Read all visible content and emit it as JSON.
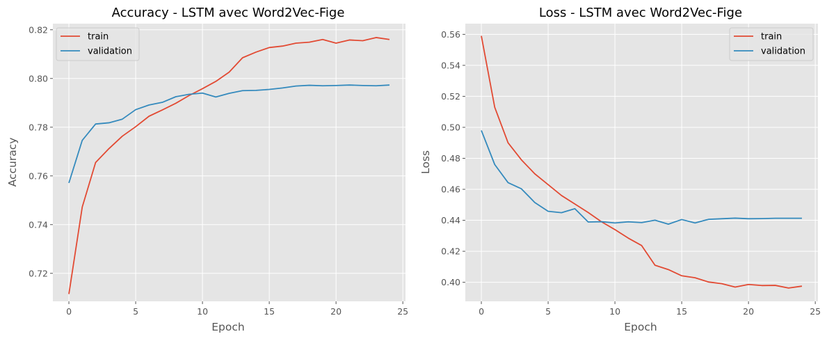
{
  "chart_data": [
    {
      "type": "line",
      "title": "Accuracy - LSTM avec Word2Vec-Fige",
      "xlabel": "Epoch",
      "ylabel": "Accuracy",
      "xlim": [
        -1.2,
        25.2
      ],
      "ylim": [
        0.7085,
        0.8225
      ],
      "xticks": [
        0,
        5,
        10,
        15,
        20,
        25
      ],
      "xtick_labels": [
        "0",
        "5",
        "10",
        "15",
        "20",
        "25"
      ],
      "yticks": [
        0.72,
        0.74,
        0.76,
        0.78,
        0.8,
        0.82
      ],
      "ytick_labels": [
        "0.72",
        "0.74",
        "0.76",
        "0.78",
        "0.80",
        "0.82"
      ],
      "grid": true,
      "legend_position": "upper left",
      "x": [
        0,
        1,
        2,
        3,
        4,
        5,
        6,
        7,
        8,
        9,
        10,
        11,
        12,
        13,
        14,
        15,
        16,
        17,
        18,
        19,
        20,
        21,
        22,
        23,
        24
      ],
      "series": [
        {
          "name": "train",
          "color": "#e24a33",
          "values": [
            0.7115,
            0.7472,
            0.7655,
            0.7712,
            0.7763,
            0.7802,
            0.7845,
            0.7871,
            0.7898,
            0.793,
            0.7958,
            0.7988,
            0.8026,
            0.8085,
            0.8108,
            0.8127,
            0.8133,
            0.8145,
            0.8149,
            0.816,
            0.8145,
            0.8158,
            0.8155,
            0.8168,
            0.816
          ]
        },
        {
          "name": "validation",
          "color": "#348abd",
          "values": [
            0.7571,
            0.7746,
            0.7813,
            0.7818,
            0.7833,
            0.7872,
            0.7891,
            0.7902,
            0.7925,
            0.7935,
            0.794,
            0.7924,
            0.7939,
            0.795,
            0.7951,
            0.7955,
            0.7961,
            0.7969,
            0.7972,
            0.797,
            0.7971,
            0.7973,
            0.7971,
            0.797,
            0.7973
          ]
        }
      ]
    },
    {
      "type": "line",
      "title": "Loss - LSTM avec Word2Vec-Fige",
      "xlabel": "Epoch",
      "ylabel": "Loss",
      "xlim": [
        -1.2,
        25.2
      ],
      "ylim": [
        0.3877,
        0.5669
      ],
      "xticks": [
        0,
        5,
        10,
        15,
        20,
        25
      ],
      "xtick_labels": [
        "0",
        "5",
        "10",
        "15",
        "20",
        "25"
      ],
      "yticks": [
        0.4,
        0.42,
        0.44,
        0.46,
        0.48,
        0.5,
        0.52,
        0.54,
        0.56
      ],
      "ytick_labels": [
        "0.40",
        "0.42",
        "0.44",
        "0.46",
        "0.48",
        "0.50",
        "0.52",
        "0.54",
        "0.56"
      ],
      "grid": true,
      "legend_position": "upper right",
      "x": [
        0,
        1,
        2,
        3,
        4,
        5,
        6,
        7,
        8,
        9,
        10,
        11,
        12,
        13,
        14,
        15,
        16,
        17,
        18,
        19,
        20,
        21,
        22,
        23,
        24
      ],
      "series": [
        {
          "name": "train",
          "color": "#e24a33",
          "values": [
            0.559,
            0.513,
            0.49,
            0.479,
            0.47,
            0.463,
            0.456,
            0.4505,
            0.445,
            0.439,
            0.434,
            0.4285,
            0.4237,
            0.411,
            0.4082,
            0.4042,
            0.4029,
            0.4002,
            0.3991,
            0.3969,
            0.3986,
            0.3979,
            0.398,
            0.3963,
            0.3975
          ]
        },
        {
          "name": "validation",
          "color": "#348abd",
          "values": [
            0.498,
            0.476,
            0.4643,
            0.4603,
            0.4515,
            0.4458,
            0.4449,
            0.4475,
            0.4389,
            0.4391,
            0.4383,
            0.439,
            0.4385,
            0.4401,
            0.4375,
            0.4405,
            0.4383,
            0.4406,
            0.441,
            0.4414,
            0.441,
            0.4411,
            0.4413,
            0.4413,
            0.4413
          ]
        }
      ]
    }
  ]
}
